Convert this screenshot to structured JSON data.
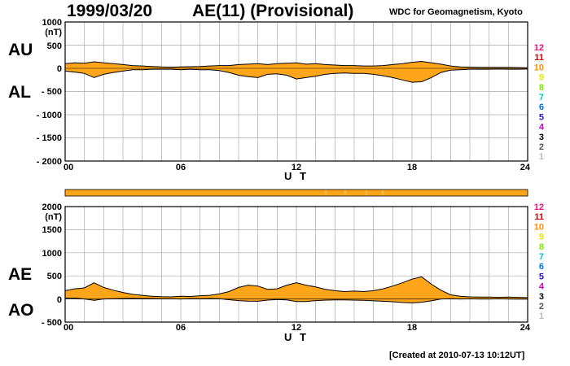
{
  "header": {
    "date": "1999/03/20",
    "title": "AE(11) (Provisional)",
    "source": "WDC for Geomagnetism, Kyoto",
    "created": "[Created at 2010-07-13 10:12UT]"
  },
  "colors": {
    "fill": "#FFA519",
    "line": "#000000",
    "grid": "#aaaaaa",
    "bar": "#FFA519"
  },
  "station_labels": {
    "values": [
      "12",
      "11",
      "10",
      "9",
      "8",
      "7",
      "6",
      "5",
      "4",
      "3",
      "2",
      "1"
    ],
    "colors": [
      "#e8117f",
      "#cc0000",
      "#ff8c00",
      "#e6e600",
      "#80e600",
      "#00c8c8",
      "#0073e6",
      "#2a18c8",
      "#c800c8",
      "#000000",
      "#555555",
      "#bbbbbb"
    ]
  },
  "chart_data": [
    {
      "type": "area",
      "panel": "AU/AL",
      "series_labels": [
        "AU",
        "AL"
      ],
      "x_tick_labels": [
        "00",
        "06",
        "12",
        "18",
        "24"
      ],
      "y_tick_labels": [
        "1000",
        "(nT)",
        "500",
        "0",
        "- 500",
        "- 1000",
        "- 1500",
        "- 2000"
      ],
      "xlabel": "U T",
      "ylabel": "(nT)",
      "xlim": [
        0,
        24
      ],
      "ylim": [
        -2000,
        1000
      ],
      "grid": true,
      "x": [
        0,
        0.5,
        1.0,
        1.5,
        2.0,
        2.5,
        3.0,
        3.5,
        4.0,
        4.5,
        5.0,
        5.5,
        6.0,
        6.5,
        7.0,
        7.5,
        8.0,
        8.5,
        9.0,
        9.5,
        10.0,
        10.5,
        11.0,
        11.5,
        12.0,
        12.5,
        13.0,
        13.5,
        14.0,
        14.5,
        15.0,
        15.5,
        16.0,
        16.5,
        17.0,
        17.5,
        18.0,
        18.5,
        19.0,
        19.5,
        20.0,
        20.5,
        21.0,
        21.5,
        22.0,
        22.5,
        23.0,
        23.5,
        24.0
      ],
      "series": [
        {
          "name": "AU",
          "values": [
            100,
            120,
            110,
            140,
            120,
            100,
            80,
            60,
            50,
            40,
            30,
            25,
            30,
            35,
            40,
            50,
            60,
            60,
            80,
            90,
            100,
            80,
            100,
            110,
            120,
            90,
            100,
            80,
            70,
            60,
            60,
            50,
            50,
            60,
            80,
            100,
            130,
            150,
            120,
            90,
            50,
            30,
            25,
            20,
            20,
            20,
            20,
            15,
            10
          ]
        },
        {
          "name": "AL",
          "values": [
            -60,
            -80,
            -110,
            -200,
            -130,
            -90,
            -60,
            -30,
            -30,
            -20,
            -20,
            -20,
            -30,
            -20,
            -30,
            -30,
            -50,
            -90,
            -150,
            -180,
            -200,
            -130,
            -120,
            -150,
            -230,
            -200,
            -170,
            -130,
            -110,
            -100,
            -110,
            -110,
            -130,
            -160,
            -200,
            -250,
            -300,
            -290,
            -200,
            -90,
            -40,
            -30,
            -20,
            -20,
            -20,
            -15,
            -20,
            -20,
            -15
          ]
        }
      ]
    },
    {
      "type": "area",
      "panel": "AE/AO",
      "series_labels": [
        "AE",
        "AO"
      ],
      "x_tick_labels": [
        "00",
        "06",
        "12",
        "18",
        "24"
      ],
      "y_tick_labels": [
        "2000",
        "(nT)",
        "1500",
        "1000",
        "500",
        "0",
        "- 500"
      ],
      "xlabel": "U T",
      "ylabel": "(nT)",
      "xlim": [
        0,
        24
      ],
      "ylim": [
        -500,
        2000
      ],
      "grid": true,
      "x": [
        0,
        0.5,
        1.0,
        1.5,
        2.0,
        2.5,
        3.0,
        3.5,
        4.0,
        4.5,
        5.0,
        5.5,
        6.0,
        6.5,
        7.0,
        7.5,
        8.0,
        8.5,
        9.0,
        9.5,
        10.0,
        10.5,
        11.0,
        11.5,
        12.0,
        12.5,
        13.0,
        13.5,
        14.0,
        14.5,
        15.0,
        15.5,
        16.0,
        16.5,
        17.0,
        17.5,
        18.0,
        18.5,
        19.0,
        19.5,
        20.0,
        20.5,
        21.0,
        21.5,
        22.0,
        22.5,
        23.0,
        23.5,
        24.0
      ],
      "series": [
        {
          "name": "AE",
          "values": [
            180,
            220,
            240,
            350,
            250,
            190,
            140,
            100,
            80,
            60,
            50,
            45,
            60,
            55,
            70,
            80,
            110,
            160,
            250,
            300,
            280,
            210,
            220,
            300,
            350,
            300,
            260,
            210,
            180,
            160,
            170,
            160,
            180,
            220,
            280,
            350,
            430,
            480,
            320,
            190,
            90,
            60,
            45,
            40,
            40,
            35,
            40,
            35,
            30
          ]
        },
        {
          "name": "AO",
          "values": [
            20,
            20,
            0,
            -30,
            0,
            5,
            10,
            15,
            10,
            10,
            5,
            3,
            0,
            8,
            5,
            10,
            5,
            -15,
            -35,
            -45,
            -50,
            -25,
            -10,
            -20,
            -55,
            -55,
            -35,
            -25,
            -20,
            -20,
            -25,
            -30,
            -40,
            -50,
            -60,
            -75,
            -85,
            -70,
            -40,
            0,
            5,
            0,
            3,
            0,
            0,
            3,
            0,
            -3,
            -3
          ]
        }
      ]
    }
  ]
}
